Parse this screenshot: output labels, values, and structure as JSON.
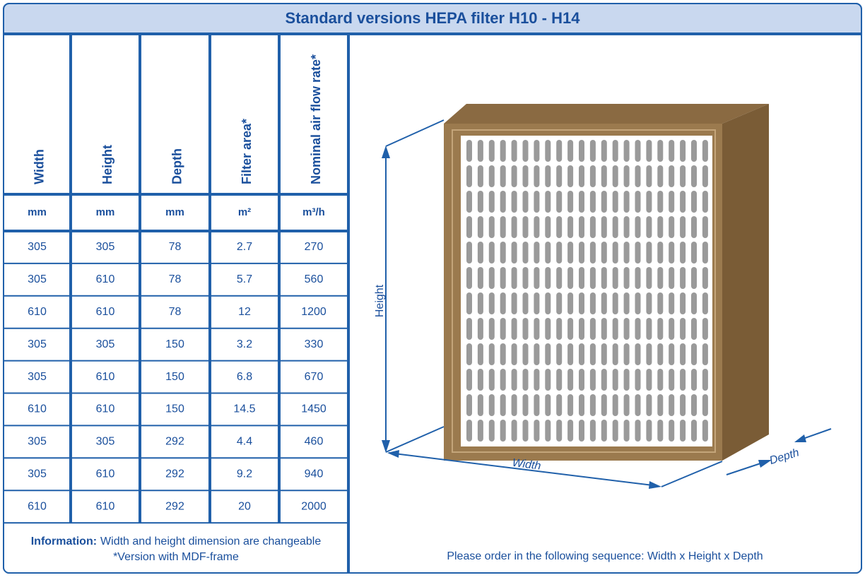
{
  "title": "Standard versions HEPA filter H10 - H14",
  "table": {
    "headers": [
      "Width",
      "Height",
      "Depth",
      "Filter area*",
      "Nominal air flow rate*"
    ],
    "units": [
      "mm",
      "mm",
      "mm",
      "m²",
      "m³/h"
    ],
    "rows": [
      [
        "305",
        "305",
        "78",
        "2.7",
        "270"
      ],
      [
        "305",
        "610",
        "78",
        "5.7",
        "560"
      ],
      [
        "610",
        "610",
        "78",
        "12",
        "1200"
      ],
      [
        "305",
        "305",
        "150",
        "3.2",
        "330"
      ],
      [
        "305",
        "610",
        "150",
        "6.8",
        "670"
      ],
      [
        "610",
        "610",
        "150",
        "14.5",
        "1450"
      ],
      [
        "305",
        "305",
        "292",
        "4.4",
        "460"
      ],
      [
        "305",
        "610",
        "292",
        "9.2",
        "940"
      ],
      [
        "610",
        "610",
        "292",
        "20",
        "2000"
      ]
    ]
  },
  "information": {
    "label": "Information:",
    "text": "Width and height dimension are changeable",
    "note": "*Version with MDF-frame"
  },
  "drawing": {
    "height_label": "Height",
    "width_label": "Width",
    "depth_label": "Depth"
  },
  "order_note": "Please order in the following sequence: Width x Height x Depth"
}
